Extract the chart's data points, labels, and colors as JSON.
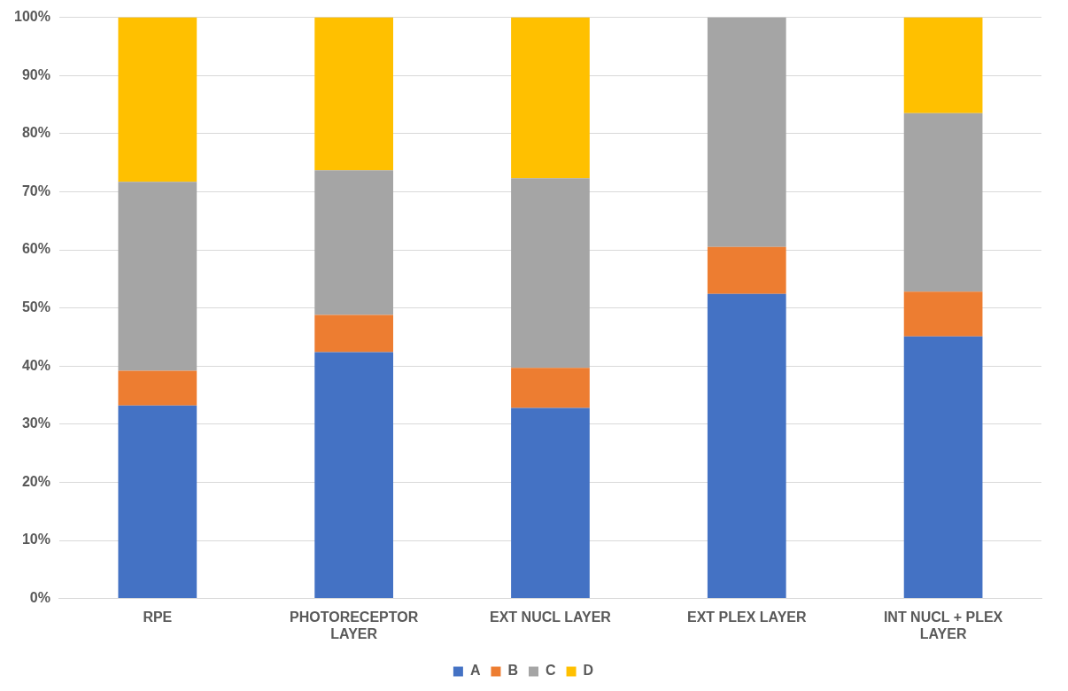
{
  "chart_data": {
    "type": "bar",
    "stacked": true,
    "categories": [
      "RPE",
      "PHOTORECEPTOR LAYER",
      "EXT NUCL LAYER",
      "EXT PLEX LAYER",
      "INT NUCL + PLEX LAYER"
    ],
    "series": [
      {
        "name": "A",
        "color": "#4472c4",
        "values": [
          33.2,
          42.4,
          32.8,
          52.4,
          45.1
        ]
      },
      {
        "name": "B",
        "color": "#ed7d31",
        "values": [
          6.0,
          6.4,
          6.9,
          8.1,
          7.7
        ]
      },
      {
        "name": "C",
        "color": "#a5a5a5",
        "values": [
          32.5,
          24.9,
          32.6,
          39.5,
          30.7
        ]
      },
      {
        "name": "D",
        "color": "#ffc000",
        "values": [
          28.3,
          26.3,
          27.7,
          0,
          16.5
        ]
      }
    ],
    "ylim": [
      0,
      100
    ],
    "yticks": [
      {
        "value": 0,
        "label": "0%"
      },
      {
        "value": 10,
        "label": "10%"
      },
      {
        "value": 20,
        "label": "20%"
      },
      {
        "value": 30,
        "label": "30%"
      },
      {
        "value": 40,
        "label": "40%"
      },
      {
        "value": 50,
        "label": "50%"
      },
      {
        "value": 60,
        "label": "60%"
      },
      {
        "value": 70,
        "label": "70%"
      },
      {
        "value": 80,
        "label": "80%"
      },
      {
        "value": 90,
        "label": "90%"
      },
      {
        "value": 100,
        "label": "100%"
      }
    ],
    "grid": "y",
    "legend": "bottom"
  }
}
